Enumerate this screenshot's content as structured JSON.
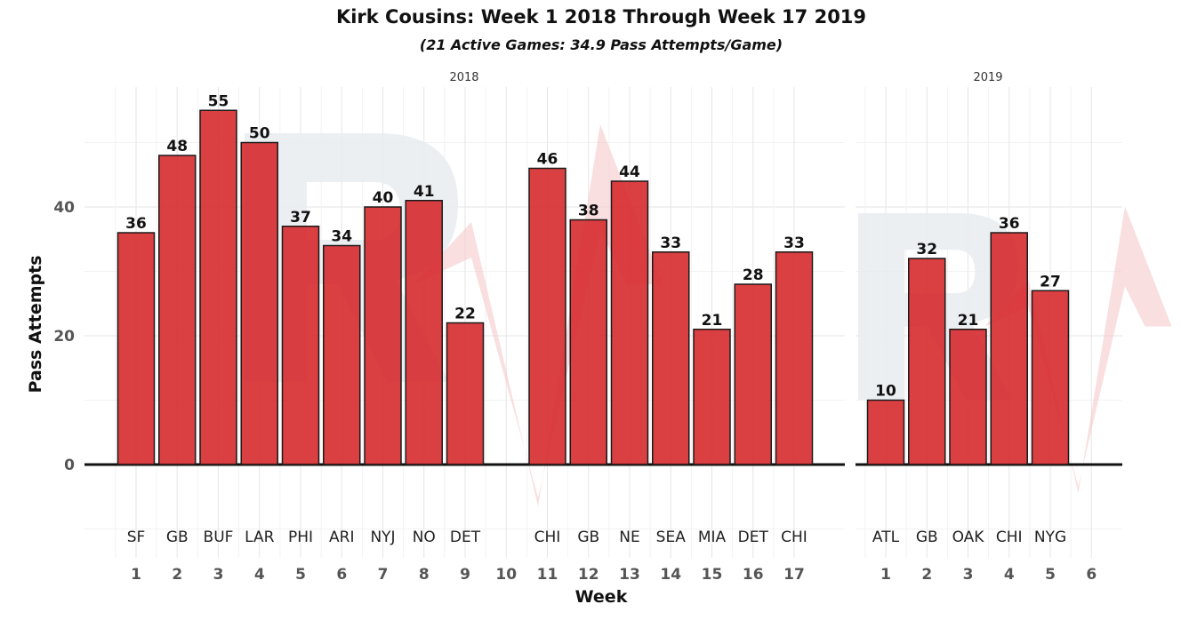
{
  "chart_data": {
    "type": "bar",
    "title": "Kirk Cousins: Week 1 2018 Through Week 17 2019",
    "subtitle": "(21 Active Games: 34.9 Pass Attempts/Game)",
    "xlabel": "Week",
    "ylabel": "Pass Attempts",
    "ylim": [
      -15,
      58
    ],
    "yticks": [
      "0",
      "20",
      "40"
    ],
    "colors": {
      "bar": "#d62a2e"
    },
    "panels": [
      {
        "name": "2018",
        "weeks": [
          "1",
          "2",
          "3",
          "4",
          "5",
          "6",
          "7",
          "8",
          "9",
          "10",
          "11",
          "12",
          "13",
          "14",
          "15",
          "16",
          "17"
        ],
        "opponents": [
          "SF",
          "GB",
          "BUF",
          "LAR",
          "PHI",
          "ARI",
          "NYJ",
          "NO",
          "DET",
          "",
          "CHI",
          "GB",
          "NE",
          "SEA",
          "MIA",
          "DET",
          "CHI"
        ],
        "values": [
          36,
          48,
          55,
          50,
          37,
          34,
          40,
          41,
          22,
          null,
          46,
          38,
          44,
          33,
          21,
          28,
          33
        ]
      },
      {
        "name": "2019",
        "weeks": [
          "1",
          "2",
          "3",
          "4",
          "5",
          "6"
        ],
        "opponents": [
          "ATL",
          "GB",
          "OAK",
          "CHI",
          "NYG",
          ""
        ],
        "values": [
          10,
          32,
          21,
          36,
          27,
          null
        ]
      }
    ]
  }
}
